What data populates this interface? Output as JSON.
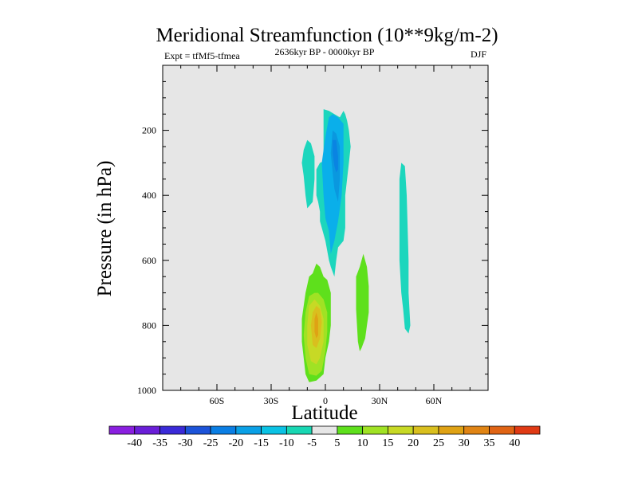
{
  "chart_data": {
    "type": "contour",
    "title": "Meridional Streamfunction (10**9kg/m-2)",
    "subtitle_left": "Expt = tfMf5-tfmea",
    "subtitle_center": "2636kyr BP - 0000kyr BP",
    "subtitle_right": "DJF",
    "xlabel": "Latitude",
    "ylabel": "Pressure (in hPa)",
    "xlim": [
      -90,
      90
    ],
    "ylim": [
      0,
      1000
    ],
    "y_inverted": true,
    "x_ticks": [
      {
        "value": -60,
        "label": "60S"
      },
      {
        "value": -30,
        "label": "30S"
      },
      {
        "value": 0,
        "label": "0"
      },
      {
        "value": 30,
        "label": "30N"
      },
      {
        "value": 60,
        "label": "60N"
      }
    ],
    "y_ticks": [
      {
        "value": 200,
        "label": "200"
      },
      {
        "value": 400,
        "label": "400"
      },
      {
        "value": 600,
        "label": "600"
      },
      {
        "value": 800,
        "label": "800"
      },
      {
        "value": 1000,
        "label": "1000"
      }
    ],
    "background_color": "#e6e6e6",
    "regions": [
      {
        "level": "-10",
        "color": "#1cd6bd",
        "points": [
          [
            -1,
            295
          ],
          [
            -3,
            300
          ],
          [
            -5,
            320
          ],
          [
            -5,
            400
          ],
          [
            -4,
            420
          ],
          [
            -3,
            450
          ],
          [
            -3,
            480
          ],
          [
            0,
            540
          ],
          [
            2,
            600
          ],
          [
            3,
            620
          ],
          [
            5,
            650
          ],
          [
            6,
            600
          ],
          [
            7,
            560
          ],
          [
            10,
            540
          ],
          [
            11,
            500
          ],
          [
            11,
            400
          ],
          [
            13,
            300
          ],
          [
            14,
            250
          ],
          [
            13,
            200
          ],
          [
            12,
            170
          ],
          [
            11,
            150
          ],
          [
            10,
            140
          ],
          [
            8,
            160
          ],
          [
            5,
            150
          ],
          [
            2,
            140
          ],
          [
            -1,
            135
          ]
        ]
      },
      {
        "level": "-10",
        "color": "#1cd6bd",
        "points": [
          [
            -10,
            230
          ],
          [
            -12,
            260
          ],
          [
            -13,
            300
          ],
          [
            -12,
            340
          ],
          [
            -11,
            400
          ],
          [
            -10,
            440
          ],
          [
            -7,
            420
          ],
          [
            -6,
            350
          ],
          [
            -6,
            280
          ],
          [
            -8,
            240
          ]
        ]
      },
      {
        "level": "-10",
        "color": "#1cd6bd",
        "points": [
          [
            41,
            350
          ],
          [
            42,
            300
          ],
          [
            44,
            310
          ],
          [
            45,
            400
          ],
          [
            46,
            600
          ],
          [
            46,
            700
          ],
          [
            47,
            800
          ],
          [
            46,
            825
          ],
          [
            44,
            810
          ],
          [
            43,
            750
          ],
          [
            42,
            700
          ],
          [
            41,
            600
          ],
          [
            41,
            500
          ],
          [
            41,
            400
          ]
        ]
      },
      {
        "level": "-15",
        "color": "#0aafea",
        "points": [
          [
            2,
            160
          ],
          [
            4,
            150
          ],
          [
            7,
            160
          ],
          [
            10,
            180
          ],
          [
            10,
            300
          ],
          [
            9,
            400
          ],
          [
            7,
            480
          ],
          [
            5,
            540
          ],
          [
            3,
            580
          ],
          [
            2,
            510
          ],
          [
            0,
            470
          ],
          [
            -1,
            400
          ],
          [
            -2,
            300
          ],
          [
            0,
            220
          ]
        ]
      },
      {
        "level": "-20",
        "color": "#0a98df",
        "points": [
          [
            4,
            200
          ],
          [
            6,
            210
          ],
          [
            8,
            250
          ],
          [
            8,
            350
          ],
          [
            7,
            420
          ],
          [
            5,
            380
          ],
          [
            4,
            330
          ],
          [
            3,
            270
          ]
        ]
      },
      {
        "level": "-25",
        "color": "#0a84e2",
        "points": [
          [
            4,
            230
          ],
          [
            6,
            230
          ],
          [
            7,
            280
          ],
          [
            7,
            320
          ],
          [
            6,
            330
          ],
          [
            5,
            310
          ],
          [
            4,
            270
          ]
        ]
      },
      {
        "level": "5",
        "color": "#5ee01c",
        "points": [
          [
            -7,
            640
          ],
          [
            -9,
            650
          ],
          [
            -11,
            700
          ],
          [
            -13,
            780
          ],
          [
            -13,
            850
          ],
          [
            -12,
            900
          ],
          [
            -11,
            950
          ],
          [
            -9,
            975
          ],
          [
            -5,
            970
          ],
          [
            -3,
            960
          ],
          [
            -1,
            950
          ],
          [
            0,
            900
          ],
          [
            2,
            850
          ],
          [
            3,
            800
          ],
          [
            3,
            700
          ],
          [
            1,
            660
          ],
          [
            -1,
            650
          ],
          [
            -3,
            620
          ],
          [
            -5,
            610
          ]
        ]
      },
      {
        "level": "5",
        "color": "#5ee01c",
        "points": [
          [
            21,
            580
          ],
          [
            23,
            620
          ],
          [
            24,
            680
          ],
          [
            24,
            760
          ],
          [
            23,
            800
          ],
          [
            22,
            840
          ],
          [
            20,
            870
          ],
          [
            19,
            880
          ],
          [
            18,
            850
          ],
          [
            17,
            750
          ],
          [
            17,
            650
          ],
          [
            19,
            620
          ]
        ]
      },
      {
        "level": "10",
        "color": "#a0e224",
        "points": [
          [
            -6,
            700
          ],
          [
            -9,
            710
          ],
          [
            -11,
            760
          ],
          [
            -12,
            830
          ],
          [
            -11,
            900
          ],
          [
            -9,
            950
          ],
          [
            -5,
            955
          ],
          [
            -2,
            940
          ],
          [
            0,
            880
          ],
          [
            1,
            820
          ],
          [
            1,
            760
          ],
          [
            -1,
            720
          ],
          [
            -4,
            700
          ]
        ]
      },
      {
        "level": "15",
        "color": "#c7d925",
        "points": [
          [
            -6,
            720
          ],
          [
            -9,
            740
          ],
          [
            -10,
            800
          ],
          [
            -10,
            860
          ],
          [
            -8,
            910
          ],
          [
            -5,
            920
          ],
          [
            -3,
            900
          ],
          [
            -1,
            850
          ],
          [
            -1,
            780
          ],
          [
            -3,
            740
          ]
        ]
      },
      {
        "level": "20",
        "color": "#d9bf1e",
        "points": [
          [
            -5,
            740
          ],
          [
            -7,
            760
          ],
          [
            -8,
            800
          ],
          [
            -7,
            860
          ],
          [
            -5,
            870
          ],
          [
            -3,
            840
          ],
          [
            -2,
            790
          ],
          [
            -3,
            750
          ]
        ]
      },
      {
        "level": "25",
        "color": "#dfa214",
        "points": [
          [
            -5,
            760
          ],
          [
            -6,
            780
          ],
          [
            -6,
            820
          ],
          [
            -5,
            840
          ],
          [
            -4,
            830
          ],
          [
            -4,
            780
          ]
        ]
      }
    ],
    "colorbar": {
      "labels": [
        "-40",
        "-35",
        "-30",
        "-25",
        "-20",
        "-15",
        "-10",
        "-5",
        "5",
        "10",
        "15",
        "20",
        "25",
        "30",
        "35",
        "40"
      ],
      "colors": [
        "#8a1fe0",
        "#6a1ed8",
        "#3a2ad8",
        "#1c53d9",
        "#0a7ee4",
        "#0aa0e6",
        "#0ac2e4",
        "#18d7b3",
        "#e6e6e6",
        "#5ee01c",
        "#a0e224",
        "#c7d925",
        "#d9bf1e",
        "#dfa214",
        "#e08414",
        "#e06414",
        "#e03a14"
      ]
    }
  }
}
